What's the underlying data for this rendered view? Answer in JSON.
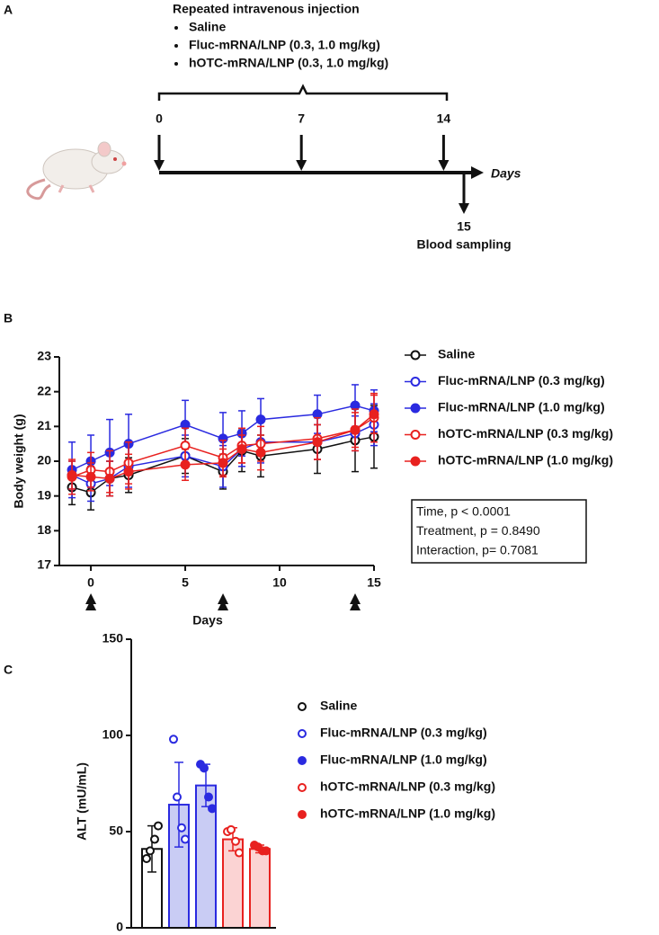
{
  "panel_labels": [
    "A",
    "B",
    "C"
  ],
  "diagram": {
    "title": "Repeated intravenous injection",
    "bullets": [
      "Saline",
      "Fluc-mRNA/LNP (0.3, 1.0 mg/kg)",
      "hOTC-mRNA/LNP (0.3, 1.0 mg/kg)"
    ],
    "days": [
      0,
      7,
      14
    ],
    "axis_label": "Days",
    "sampling_day": 15,
    "sampling_label": "Blood sampling"
  },
  "chart_data": [
    {
      "type": "line",
      "y_label": "Body weight (g)",
      "x_label": "Days",
      "x": [
        -1,
        0,
        1,
        2,
        5,
        7,
        8,
        9,
        12,
        14,
        15
      ],
      "xlim": [
        -1.67,
        15
      ],
      "xticks": [
        0,
        5,
        10,
        15
      ],
      "ylim": [
        17,
        23
      ],
      "yticks": [
        17,
        18,
        19,
        20,
        21,
        22,
        23
      ],
      "dose_days": [
        0,
        7,
        14
      ],
      "legend": "right",
      "annotation": [
        "Time, p < 0.0001",
        "Treatment, p = 0.8490",
        "Interaction, p= 0.7081"
      ],
      "series": [
        {
          "name": "Saline",
          "color": "#111111",
          "filled": false,
          "values": [
            19.25,
            19.1,
            19.5,
            19.6,
            20.15,
            19.7,
            20.3,
            20.15,
            20.35,
            20.6,
            20.7
          ],
          "errors": [
            0.5,
            0.5,
            0.5,
            0.5,
            0.5,
            0.5,
            0.6,
            0.6,
            0.7,
            0.9,
            0.9
          ]
        },
        {
          "name": "Fluc-mRNA/LNP (0.3 mg/kg)",
          "color": "#2a2ae0",
          "filled": false,
          "values": [
            19.6,
            19.35,
            19.5,
            19.85,
            20.15,
            19.85,
            20.35,
            20.55,
            20.55,
            20.8,
            21.05
          ],
          "errors": [
            0.4,
            0.5,
            0.5,
            0.6,
            0.6,
            0.6,
            0.5,
            0.6,
            0.5,
            0.5,
            0.6
          ]
        },
        {
          "name": "Fluc-mRNA/LNP (1.0 mg/kg)",
          "color": "#2a2ae0",
          "filled": true,
          "values": [
            19.75,
            20.0,
            20.25,
            20.5,
            21.05,
            20.65,
            20.8,
            21.2,
            21.35,
            21.6,
            21.45
          ],
          "errors": [
            0.8,
            0.75,
            0.95,
            0.85,
            0.7,
            0.75,
            0.65,
            0.6,
            0.55,
            0.6,
            0.6
          ]
        },
        {
          "name": "hOTC-mRNA/LNP (0.3 mg/kg)",
          "color": "#e8211f",
          "filled": false,
          "values": [
            19.55,
            19.75,
            19.7,
            19.95,
            20.45,
            20.1,
            20.45,
            20.5,
            20.65,
            20.9,
            21.25
          ],
          "errors": [
            0.5,
            0.5,
            0.6,
            0.6,
            0.5,
            0.5,
            0.5,
            0.5,
            0.6,
            0.6,
            0.7
          ]
        },
        {
          "name": "hOTC-mRNA/LNP (1.0 mg/kg)",
          "color": "#e8211f",
          "filled": true,
          "values": [
            19.6,
            19.55,
            19.5,
            19.7,
            19.9,
            19.95,
            20.35,
            20.25,
            20.55,
            20.9,
            21.35
          ],
          "errors": [
            0.4,
            0.4,
            0.5,
            0.5,
            0.45,
            0.4,
            0.4,
            0.5,
            0.5,
            0.5,
            0.55
          ]
        }
      ]
    },
    {
      "type": "bar",
      "y_label": "ALT (mU/mL)",
      "categories": [
        null
      ],
      "ylim": [
        0,
        150
      ],
      "yticks": [
        0,
        50,
        100,
        150
      ],
      "legend": "right",
      "series": [
        {
          "name": "Saline",
          "color": "#111111",
          "fill": "#ffffff",
          "filled": false,
          "values": [
            41
          ],
          "errors": [
            12
          ],
          "points": [
            [
              36,
              40,
              46,
              53
            ]
          ]
        },
        {
          "name": "Fluc-mRNA/LNP (0.3 mg/kg)",
          "color": "#2a2ae0",
          "fill": "#c9ccf4",
          "filled": false,
          "values": [
            64
          ],
          "errors": [
            22
          ],
          "points": [
            [
              98,
              68,
              52,
              46
            ]
          ]
        },
        {
          "name": "Fluc-mRNA/LNP (1.0 mg/kg)",
          "color": "#2a2ae0",
          "fill": "#c9ccf4",
          "filled": true,
          "values": [
            74
          ],
          "errors": [
            11
          ],
          "points": [
            [
              85,
              83,
              68,
              62
            ]
          ]
        },
        {
          "name": "hOTC-mRNA/LNP (0.3 mg/kg)",
          "color": "#e8211f",
          "fill": "#fbd3d3",
          "filled": false,
          "values": [
            46
          ],
          "errors": [
            6
          ],
          "points": [
            [
              50,
              51,
              45,
              39
            ]
          ]
        },
        {
          "name": "hOTC-mRNA/LNP (1.0 mg/kg)",
          "color": "#e8211f",
          "fill": "#fbd3d3",
          "filled": true,
          "values": [
            41
          ],
          "errors": [
            2
          ],
          "points": [
            [
              43,
              42,
              40,
              40
            ]
          ]
        }
      ]
    }
  ]
}
